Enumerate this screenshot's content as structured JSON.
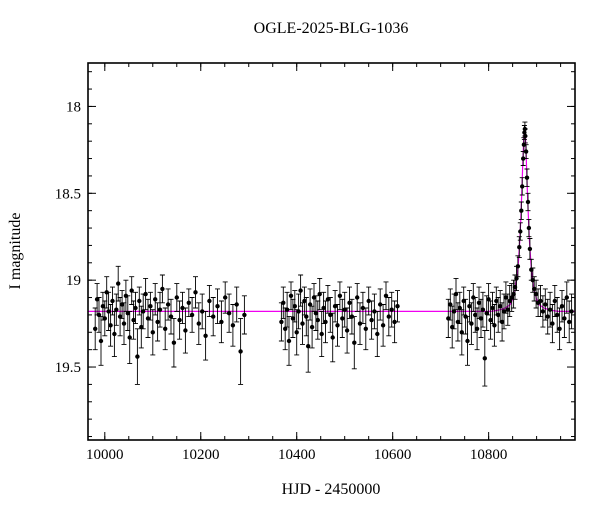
{
  "page": {
    "background": "#ffffff"
  },
  "chart_data": {
    "type": "scatter",
    "title": "OGLE-2025-BLG-1036",
    "xlabel": "HJD - 2450000",
    "ylabel": "I magnitude",
    "x_range": [
      9965,
      10980
    ],
    "y_range": [
      19.92,
      17.75
    ],
    "y_axis_inverted": true,
    "grid": false,
    "legend": false,
    "x_major_ticks": [
      10000,
      10200,
      10400,
      10600,
      10800
    ],
    "x_minor_step": 50,
    "y_major_ticks": [
      18,
      18.5,
      19,
      19.5
    ],
    "y_minor_step": 0.1,
    "baseline_magnitude": 19.18,
    "peak_magnitude": 18.12,
    "peak_time": 10875,
    "point_color": "#000000",
    "model_color": "#f000f0",
    "model_curve": [
      [
        9965,
        19.18
      ],
      [
        10805,
        19.18
      ],
      [
        10815,
        19.175
      ],
      [
        10825,
        19.17
      ],
      [
        10835,
        19.16
      ],
      [
        10845,
        19.14
      ],
      [
        10850,
        19.11
      ],
      [
        10855,
        19.06
      ],
      [
        10859,
        18.99
      ],
      [
        10862,
        18.9
      ],
      [
        10865,
        18.77
      ],
      [
        10867,
        18.65
      ],
      [
        10869,
        18.51
      ],
      [
        10871,
        18.34
      ],
      [
        10873,
        18.19
      ],
      [
        10874,
        18.15
      ],
      [
        10875,
        18.12
      ],
      [
        10876,
        18.15
      ],
      [
        10877,
        18.19
      ],
      [
        10879,
        18.34
      ],
      [
        10881,
        18.51
      ],
      [
        10883,
        18.65
      ],
      [
        10885,
        18.77
      ],
      [
        10888,
        18.9
      ],
      [
        10891,
        18.99
      ],
      [
        10895,
        19.06
      ],
      [
        10900,
        19.11
      ],
      [
        10905,
        19.14
      ],
      [
        10915,
        19.16
      ],
      [
        10925,
        19.17
      ],
      [
        10935,
        19.175
      ],
      [
        10945,
        19.18
      ],
      [
        10980,
        19.18
      ]
    ],
    "points": [
      [
        9980,
        19.28,
        0.12
      ],
      [
        9984,
        19.11,
        0.09
      ],
      [
        9988,
        19.2,
        0.1
      ],
      [
        9992,
        19.35,
        0.14
      ],
      [
        9996,
        19.15,
        0.08
      ],
      [
        10000,
        19.22,
        0.1
      ],
      [
        10004,
        19.07,
        0.09
      ],
      [
        10008,
        19.18,
        0.11
      ],
      [
        10012,
        19.26,
        0.12
      ],
      [
        10016,
        19.12,
        0.08
      ],
      [
        10020,
        19.31,
        0.13
      ],
      [
        10024,
        19.17,
        0.09
      ],
      [
        10028,
        19.02,
        0.1
      ],
      [
        10032,
        19.21,
        0.11
      ],
      [
        10036,
        19.14,
        0.08
      ],
      [
        10040,
        19.25,
        0.12
      ],
      [
        10044,
        19.09,
        0.09
      ],
      [
        10048,
        19.19,
        0.1
      ],
      [
        10052,
        19.33,
        0.15
      ],
      [
        10056,
        19.06,
        0.08
      ],
      [
        10060,
        19.23,
        0.11
      ],
      [
        10064,
        19.16,
        0.09
      ],
      [
        10068,
        19.44,
        0.16
      ],
      [
        10072,
        19.12,
        0.08
      ],
      [
        10076,
        19.27,
        0.12
      ],
      [
        10080,
        19.18,
        0.1
      ],
      [
        10085,
        19.08,
        0.09
      ],
      [
        10090,
        19.22,
        0.11
      ],
      [
        10095,
        19.15,
        0.08
      ],
      [
        10100,
        19.3,
        0.13
      ],
      [
        10105,
        19.11,
        0.09
      ],
      [
        10110,
        19.24,
        0.11
      ],
      [
        10115,
        19.17,
        0.1
      ],
      [
        10120,
        19.05,
        0.08
      ],
      [
        10126,
        19.28,
        0.12
      ],
      [
        10132,
        19.14,
        0.09
      ],
      [
        10138,
        19.21,
        0.1
      ],
      [
        10144,
        19.36,
        0.14
      ],
      [
        10150,
        19.1,
        0.08
      ],
      [
        10156,
        19.23,
        0.11
      ],
      [
        10162,
        19.16,
        0.09
      ],
      [
        10168,
        19.29,
        0.13
      ],
      [
        10175,
        19.13,
        0.08
      ],
      [
        10182,
        19.2,
        0.1
      ],
      [
        10189,
        19.07,
        0.09
      ],
      [
        10196,
        19.25,
        0.12
      ],
      [
        10203,
        19.18,
        0.1
      ],
      [
        10210,
        19.32,
        0.14
      ],
      [
        10218,
        19.12,
        0.09
      ],
      [
        10226,
        19.21,
        0.11
      ],
      [
        10235,
        19.15,
        0.1
      ],
      [
        10243,
        19.24,
        0.12
      ],
      [
        10251,
        19.1,
        0.09
      ],
      [
        10259,
        19.19,
        0.11
      ],
      [
        10267,
        19.26,
        0.12
      ],
      [
        10275,
        19.14,
        0.1
      ],
      [
        10283,
        19.41,
        0.19
      ],
      [
        10291,
        19.2,
        0.11
      ],
      [
        10368,
        19.24,
        0.11
      ],
      [
        10372,
        19.13,
        0.09
      ],
      [
        10376,
        19.28,
        0.12
      ],
      [
        10380,
        19.17,
        0.1
      ],
      [
        10384,
        19.35,
        0.14
      ],
      [
        10388,
        19.09,
        0.08
      ],
      [
        10392,
        19.22,
        0.11
      ],
      [
        10396,
        19.15,
        0.09
      ],
      [
        10400,
        19.3,
        0.13
      ],
      [
        10404,
        19.18,
        0.1
      ],
      [
        10408,
        19.06,
        0.09
      ],
      [
        10412,
        19.25,
        0.12
      ],
      [
        10416,
        19.12,
        0.08
      ],
      [
        10420,
        19.21,
        0.11
      ],
      [
        10424,
        19.38,
        0.15
      ],
      [
        10428,
        19.14,
        0.09
      ],
      [
        10432,
        19.27,
        0.12
      ],
      [
        10436,
        19.1,
        0.08
      ],
      [
        10440,
        19.19,
        0.1
      ],
      [
        10444,
        19.23,
        0.11
      ],
      [
        10448,
        19.08,
        0.09
      ],
      [
        10452,
        19.31,
        0.13
      ],
      [
        10456,
        19.16,
        0.09
      ],
      [
        10460,
        19.24,
        0.12
      ],
      [
        10465,
        19.11,
        0.08
      ],
      [
        10470,
        19.2,
        0.1
      ],
      [
        10475,
        19.33,
        0.14
      ],
      [
        10480,
        19.15,
        0.09
      ],
      [
        10485,
        19.26,
        0.12
      ],
      [
        10490,
        19.09,
        0.08
      ],
      [
        10495,
        19.22,
        0.11
      ],
      [
        10500,
        19.17,
        0.1
      ],
      [
        10505,
        19.29,
        0.13
      ],
      [
        10510,
        19.13,
        0.09
      ],
      [
        10515,
        19.21,
        0.1
      ],
      [
        10520,
        19.36,
        0.15
      ],
      [
        10526,
        19.1,
        0.08
      ],
      [
        10532,
        19.25,
        0.12
      ],
      [
        10538,
        19.16,
        0.09
      ],
      [
        10544,
        19.28,
        0.12
      ],
      [
        10550,
        19.12,
        0.08
      ],
      [
        10556,
        19.23,
        0.11
      ],
      [
        10562,
        19.18,
        0.1
      ],
      [
        10568,
        19.31,
        0.13
      ],
      [
        10574,
        19.14,
        0.09
      ],
      [
        10580,
        19.26,
        0.12
      ],
      [
        10586,
        19.09,
        0.08
      ],
      [
        10592,
        19.21,
        0.11
      ],
      [
        10598,
        19.17,
        0.1
      ],
      [
        10604,
        19.24,
        0.12
      ],
      [
        10610,
        19.15,
        0.09
      ],
      [
        10716,
        19.22,
        0.11
      ],
      [
        10720,
        19.14,
        0.09
      ],
      [
        10724,
        19.27,
        0.12
      ],
      [
        10728,
        19.18,
        0.1
      ],
      [
        10732,
        19.08,
        0.09
      ],
      [
        10736,
        19.24,
        0.11
      ],
      [
        10740,
        19.16,
        0.09
      ],
      [
        10744,
        19.3,
        0.13
      ],
      [
        10748,
        19.12,
        0.08
      ],
      [
        10752,
        19.21,
        0.1
      ],
      [
        10756,
        19.35,
        0.14
      ],
      [
        10760,
        19.15,
        0.09
      ],
      [
        10764,
        19.25,
        0.12
      ],
      [
        10768,
        19.1,
        0.08
      ],
      [
        10772,
        19.2,
        0.1
      ],
      [
        10776,
        19.28,
        0.12
      ],
      [
        10780,
        19.13,
        0.09
      ],
      [
        10784,
        19.22,
        0.11
      ],
      [
        10788,
        19.17,
        0.1
      ],
      [
        10792,
        19.45,
        0.16
      ],
      [
        10796,
        19.19,
        0.1
      ],
      [
        10800,
        19.11,
        0.09
      ],
      [
        10804,
        19.23,
        0.11
      ],
      [
        10808,
        19.16,
        0.09
      ],
      [
        10812,
        19.26,
        0.12
      ],
      [
        10816,
        19.12,
        0.08
      ],
      [
        10820,
        19.2,
        0.1
      ],
      [
        10824,
        19.15,
        0.09
      ],
      [
        10828,
        19.24,
        0.11
      ],
      [
        10832,
        19.18,
        0.1
      ],
      [
        10836,
        19.1,
        0.09
      ],
      [
        10840,
        19.17,
        0.09
      ],
      [
        10844,
        19.12,
        0.09
      ],
      [
        10848,
        19.1,
        0.08
      ],
      [
        10852,
        19.08,
        0.08
      ],
      [
        10855,
        19.04,
        0.07
      ],
      [
        10858,
        18.99,
        0.07
      ],
      [
        10861,
        18.92,
        0.06
      ],
      [
        10864,
        18.81,
        0.06
      ],
      [
        10866,
        18.72,
        0.05
      ],
      [
        10868,
        18.6,
        0.05
      ],
      [
        10870,
        18.46,
        0.05
      ],
      [
        10872,
        18.3,
        0.04
      ],
      [
        10873.5,
        18.22,
        0.04
      ],
      [
        10874.5,
        18.15,
        0.04
      ],
      [
        10875.5,
        18.13,
        0.04
      ],
      [
        10876.5,
        18.17,
        0.04
      ],
      [
        10878,
        18.26,
        0.04
      ],
      [
        10880,
        18.41,
        0.05
      ],
      [
        10882,
        18.55,
        0.05
      ],
      [
        10884,
        18.7,
        0.05
      ],
      [
        10886,
        18.82,
        0.06
      ],
      [
        10889,
        18.94,
        0.06
      ],
      [
        10892,
        19.0,
        0.07
      ],
      [
        10895,
        19.05,
        0.07
      ],
      [
        10899,
        19.08,
        0.08
      ],
      [
        10903,
        19.13,
        0.08
      ],
      [
        10908,
        19.12,
        0.09
      ],
      [
        10913,
        19.18,
        0.09
      ],
      [
        10918,
        19.14,
        0.09
      ],
      [
        10923,
        19.21,
        0.1
      ],
      [
        10928,
        19.17,
        0.1
      ],
      [
        10933,
        19.25,
        0.11
      ],
      [
        10938,
        19.12,
        0.09
      ],
      [
        10943,
        19.2,
        0.1
      ],
      [
        10948,
        19.28,
        0.12
      ],
      [
        10953,
        19.15,
        0.09
      ],
      [
        10958,
        19.22,
        0.11
      ],
      [
        10963,
        19.1,
        0.09
      ],
      [
        10968,
        19.24,
        0.12
      ],
      [
        10973,
        19.18,
        0.1
      ]
    ]
  }
}
